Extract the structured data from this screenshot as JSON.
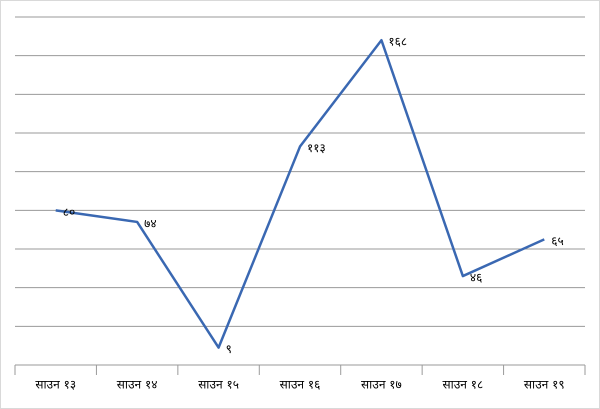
{
  "chart_data": {
    "type": "line",
    "categories": [
      "साउन १३",
      "साउन १४",
      "साउन १५",
      "साउन १६",
      "साउन १७",
      "साउन १८",
      "साउन १९"
    ],
    "series": [
      {
        "color": "#3a68b2",
        "values": [
          80,
          74,
          9,
          113,
          168,
          46,
          65
        ],
        "value_labels": [
          "८०",
          "७४",
          "९",
          "११३",
          "१६८",
          "४६",
          "६५"
        ]
      }
    ],
    "ylim": [
      0,
      180
    ],
    "yticks": [
      0,
      20,
      40,
      60,
      80,
      100,
      120,
      140,
      160,
      180
    ],
    "grid": true
  }
}
